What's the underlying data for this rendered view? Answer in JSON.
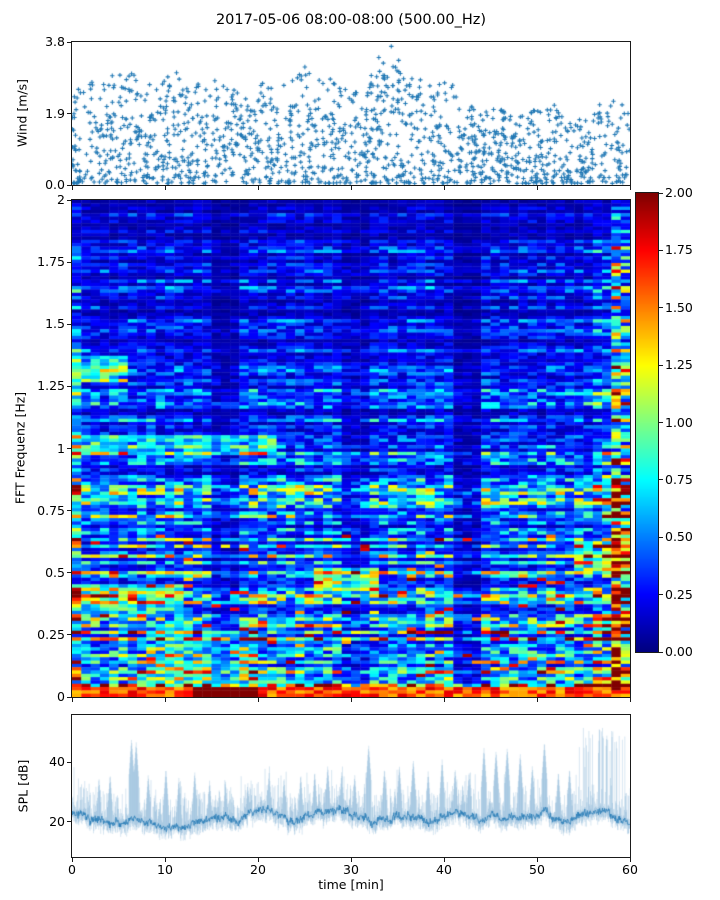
{
  "figure": {
    "title": "2017-05-06 08:00-08:00 (500.00_Hz)",
    "xlabel": "time [min]",
    "xlim": [
      0,
      60
    ],
    "xtick_values": [
      0,
      10,
      20,
      30,
      40,
      50,
      60
    ],
    "xtick_labels": [
      "0",
      "10",
      "20",
      "30",
      "40",
      "50",
      "60"
    ],
    "background": "#ffffff",
    "spine_color": "#1a1a1a",
    "text_color": "#000000",
    "accent_color": "#1f77b4"
  },
  "chart_data": [
    {
      "id": "wind",
      "type": "scatter",
      "ylabel": "Wind [m/s]",
      "ylim": [
        0,
        3.8
      ],
      "ytick_values": [
        3.8,
        1.9,
        0.0
      ],
      "ytick_labels": [
        "3.8",
        "1.9",
        "0.0"
      ],
      "marker": "plus",
      "color": "#1f77b4",
      "n_points": 1550,
      "envelope": [
        [
          0,
          2.3
        ],
        [
          1.5,
          2.8
        ],
        [
          3,
          2.6
        ],
        [
          5,
          3.0
        ],
        [
          7,
          2.95
        ],
        [
          9,
          2.5
        ],
        [
          11,
          3.05
        ],
        [
          13,
          2.6
        ],
        [
          15,
          2.8
        ],
        [
          17,
          2.5
        ],
        [
          19,
          2.45
        ],
        [
          21,
          2.9
        ],
        [
          23,
          2.6
        ],
        [
          25,
          3.1
        ],
        [
          26.5,
          3.3
        ],
        [
          28,
          2.9
        ],
        [
          30,
          2.35
        ],
        [
          32,
          2.8
        ],
        [
          33.5,
          3.8
        ],
        [
          34.5,
          3.7
        ],
        [
          36,
          2.7
        ],
        [
          37.5,
          3.1
        ],
        [
          39,
          2.6
        ],
        [
          40.5,
          2.8
        ],
        [
          42,
          2.2
        ],
        [
          44,
          1.9
        ],
        [
          46,
          2.1
        ],
        [
          48,
          1.95
        ],
        [
          50,
          2.05
        ],
        [
          52,
          2.1
        ],
        [
          54,
          1.7
        ],
        [
          56,
          1.95
        ],
        [
          58,
          2.35
        ],
        [
          60,
          2.1
        ]
      ],
      "seed": 7
    },
    {
      "id": "spectrogram",
      "type": "heatmap",
      "ylabel": "FFT Frequenz [Hz]",
      "ylim": [
        0,
        2
      ],
      "ytick_values": [
        2,
        1.75,
        1.5,
        1.25,
        1,
        0.75,
        0.5,
        0.25,
        0
      ],
      "ytick_labels": [
        "2",
        "1.75",
        "1.5",
        "1.25",
        "1",
        "0.75",
        "0.5",
        "0.25",
        "0"
      ],
      "colormap": "jet",
      "clim": [
        0,
        2
      ],
      "cols": 60,
      "rows": 150,
      "colorbar": {
        "tick_values": [
          2.0,
          1.75,
          1.5,
          1.25,
          1.0,
          0.75,
          0.5,
          0.25,
          0.0
        ],
        "tick_labels": [
          "2.00",
          "1.75",
          "1.50",
          "1.25",
          "1.00",
          "0.75",
          "0.50",
          "0.25",
          "0.00"
        ]
      },
      "base_profile": [
        [
          0,
          0.95
        ],
        [
          0.08,
          0.8
        ],
        [
          0.2,
          0.66
        ],
        [
          0.4,
          0.58
        ],
        [
          0.6,
          0.5
        ],
        [
          0.8,
          0.42
        ],
        [
          1.0,
          0.34
        ],
        [
          1.2,
          0.28
        ],
        [
          1.4,
          0.24
        ],
        [
          1.7,
          0.22
        ],
        [
          2,
          0.2
        ]
      ],
      "dark_columns": [
        [
          15,
          18,
          0.5
        ],
        [
          29,
          31.5,
          0.6
        ],
        [
          41.5,
          43.5,
          0.42
        ]
      ],
      "bright_columns": [
        [
          0,
          1.2,
          1.7
        ],
        [
          56,
          58.5,
          1.45
        ],
        [
          58.5,
          60,
          2.3
        ]
      ],
      "h_bands": [
        [
          0.97,
          1.06,
          0,
          22,
          0.6
        ],
        [
          1.27,
          1.37,
          0,
          6,
          0.65
        ],
        [
          0.42,
          0.52,
          26,
          33,
          0.9
        ],
        [
          0.5,
          0.62,
          54,
          60,
          0.8
        ],
        [
          0.33,
          0.45,
          0,
          12,
          0.5
        ],
        [
          0.05,
          0.25,
          8,
          20,
          0.4
        ]
      ],
      "bottom_band_level": 1.6,
      "seed": 3
    },
    {
      "id": "spl",
      "type": "line",
      "ylabel": "SPL [dB]",
      "ylim": [
        8,
        56
      ],
      "ytick_values": [
        40,
        20
      ],
      "ytick_labels": [
        "40",
        "20"
      ],
      "color": "#1f77b4",
      "baseline": 21.5,
      "spikes": [
        [
          2.9,
          35
        ],
        [
          4.1,
          36
        ],
        [
          6.4,
          48
        ],
        [
          6.9,
          47
        ],
        [
          8.2,
          36
        ],
        [
          10.1,
          38
        ],
        [
          11.5,
          35
        ],
        [
          13.2,
          37
        ],
        [
          14.8,
          34
        ],
        [
          16.5,
          34
        ],
        [
          18.9,
          33
        ],
        [
          21.2,
          37
        ],
        [
          22.8,
          35
        ],
        [
          24.6,
          36
        ],
        [
          26.1,
          37
        ],
        [
          27.5,
          39
        ],
        [
          29.0,
          37
        ],
        [
          30.4,
          36
        ],
        [
          31.9,
          46
        ],
        [
          33.6,
          38
        ],
        [
          35.2,
          39
        ],
        [
          36.7,
          41
        ],
        [
          38.3,
          37
        ],
        [
          39.8,
          41
        ],
        [
          41.2,
          38
        ],
        [
          42.7,
          37
        ],
        [
          44.3,
          45
        ],
        [
          45.6,
          44
        ],
        [
          46.8,
          45
        ],
        [
          48.2,
          43
        ],
        [
          49.5,
          39
        ],
        [
          50.8,
          47
        ],
        [
          52.3,
          37
        ],
        [
          53.5,
          38
        ]
      ],
      "burst_region": [
        54.5,
        60,
        42,
        52
      ],
      "seed": 11
    }
  ]
}
